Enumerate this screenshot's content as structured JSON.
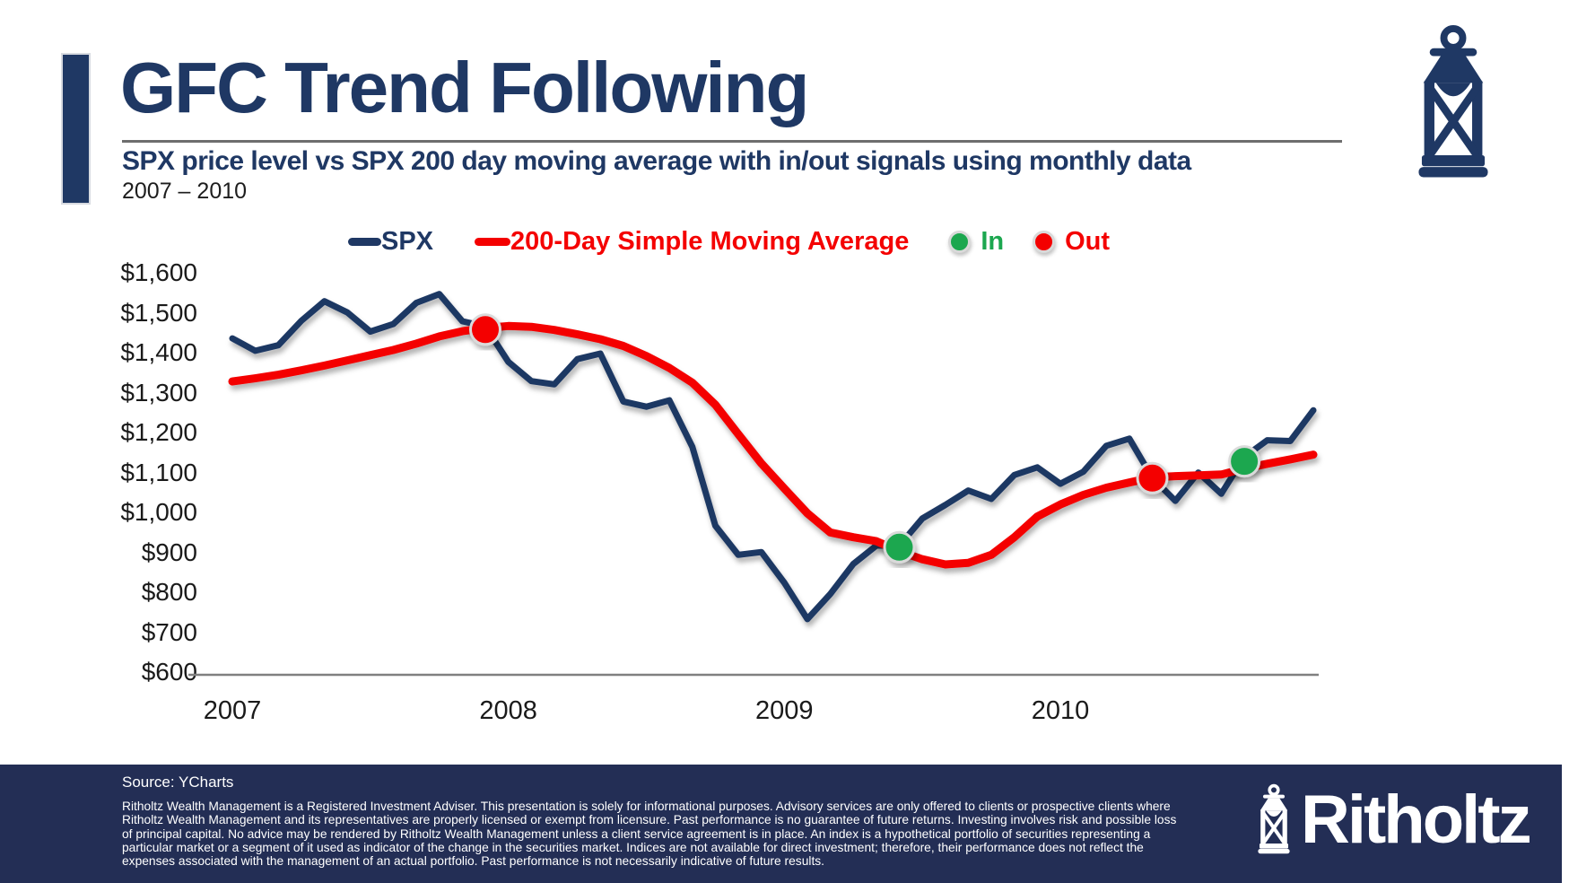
{
  "header": {
    "title": "GFC Trend Following",
    "subtitle": "SPX price level vs SPX 200 day moving average with in/out signals using monthly data",
    "date_range": "2007 – 2010"
  },
  "legend": {
    "spx_label": "SPX",
    "sma_label": "200-Day Simple Moving Average",
    "in_label": "In",
    "out_label": "Out"
  },
  "footer": {
    "source": "Source: YCharts",
    "disclaimer": "Ritholtz Wealth Management is a Registered Investment Adviser. This presentation is solely for informational purposes. Advisory services are only offered to clients or prospective clients where Ritholtz Wealth Management and its representatives are properly licensed or exempt from licensure. Past performance is no guarantee of future returns. Investing involves risk and possible loss of principal capital. No advice may be rendered by Ritholtz Wealth Management unless a client service agreement is in place. An index is a hypothetical portfolio of securities representing a particular market or a segment of it used as indicator of the change in the securities market. Indices are not available for direct investment; therefore, their performance does not reflect the expenses associated with the management of an actual portfolio. Past performance is not necessarily indicative of future results.",
    "brand": "Ritholtz"
  },
  "colors": {
    "navy": "#1F3864",
    "red": "#F40000",
    "green": "#1CA74F",
    "axis": "#808080",
    "marker_ring": "#DADADA",
    "footer_bg": "#232E55"
  },
  "chart_data": {
    "type": "line",
    "title": "SPX price level vs SPX 200 day moving average with in/out signals using monthly data",
    "xlabel": "",
    "ylabel": "",
    "x_start": "2007-01",
    "x_frequency": "monthly",
    "ylim": [
      600,
      1600
    ],
    "grid": false,
    "legend_position": "top",
    "x_ticks": [
      {
        "label": "2007",
        "index": 0
      },
      {
        "label": "2008",
        "index": 12
      },
      {
        "label": "2009",
        "index": 24
      },
      {
        "label": "2010",
        "index": 36
      }
    ],
    "y_ticks": [
      {
        "label": "$1,600",
        "value": 1600
      },
      {
        "label": "$1,500",
        "value": 1500
      },
      {
        "label": "$1,400",
        "value": 1400
      },
      {
        "label": "$1,300",
        "value": 1300
      },
      {
        "label": "$1,200",
        "value": 1200
      },
      {
        "label": "$1,100",
        "value": 1100
      },
      {
        "label": "$1,000",
        "value": 1000
      },
      {
        "label": "$900",
        "value": 900
      },
      {
        "label": "$800",
        "value": 800
      },
      {
        "label": "$700",
        "value": 700
      },
      {
        "label": "$600",
        "value": 600
      }
    ],
    "series": [
      {
        "name": "SPX",
        "color_key": "navy",
        "width": 7,
        "values": [
          1438,
          1407,
          1421,
          1482,
          1531,
          1503,
          1455,
          1474,
          1527,
          1549,
          1481,
          1468,
          1379,
          1331,
          1323,
          1386,
          1400,
          1280,
          1267,
          1283,
          1166,
          969,
          896,
          903,
          826,
          735,
          798,
          873,
          919,
          919,
          987,
          1021,
          1057,
          1036,
          1096,
          1115,
          1074,
          1104,
          1169,
          1187,
          1089,
          1031,
          1102,
          1049,
          1141,
          1183,
          1181,
          1258
        ]
      },
      {
        "name": "200-Day Simple Moving Average",
        "color_key": "red",
        "width": 9,
        "values": [
          1330,
          1338,
          1347,
          1358,
          1370,
          1383,
          1396,
          1409,
          1425,
          1443,
          1456,
          1464,
          1469,
          1467,
          1459,
          1448,
          1436,
          1419,
          1394,
          1364,
          1327,
          1272,
          1198,
          1125,
          1062,
          1000,
          952,
          940,
          930,
          905,
          885,
          872,
          876,
          896,
          940,
          992,
          1022,
          1046,
          1064,
          1077,
          1090,
          1093,
          1095,
          1097,
          1112,
          1124,
          1135,
          1147
        ]
      }
    ],
    "signals": [
      {
        "type": "Out",
        "month": "2007-12",
        "index": 11,
        "value": 1460
      },
      {
        "type": "In",
        "month": "2009-06",
        "index": 29,
        "value": 915
      },
      {
        "type": "Out",
        "month": "2010-05",
        "index": 40,
        "value": 1088
      },
      {
        "type": "In",
        "month": "2010-09",
        "index": 44,
        "value": 1130
      }
    ]
  }
}
